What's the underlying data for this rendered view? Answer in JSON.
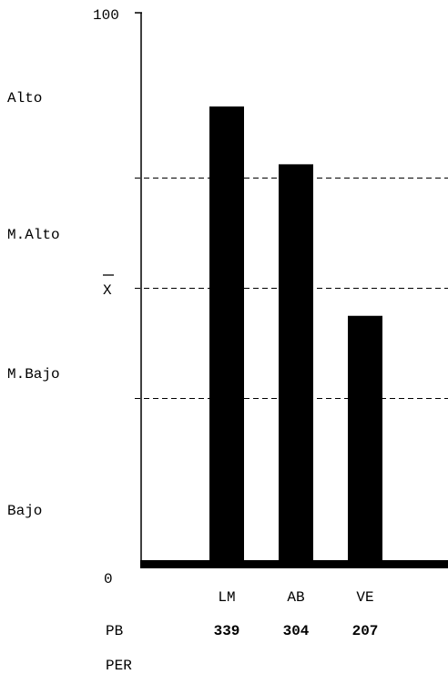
{
  "chart_data": {
    "type": "bar",
    "categories": [
      "LM",
      "AB",
      "VE"
    ],
    "values": [
      83,
      72.5,
      45
    ],
    "ylim": [
      0,
      100
    ],
    "y_tick_labels": [
      "0",
      "100"
    ],
    "mean_label": "X",
    "reference_lines": [
      30,
      50,
      70
    ],
    "bands": [
      {
        "label": "Alto",
        "range": [
          70,
          100
        ]
      },
      {
        "label": "M.Alto",
        "range": [
          50,
          70
        ]
      },
      {
        "label": "M.Bajo",
        "range": [
          30,
          50
        ]
      },
      {
        "label": "Bajo",
        "range": [
          0,
          30
        ]
      }
    ],
    "rows": [
      {
        "label": "PB",
        "values": [
          "339",
          "304",
          "207"
        ]
      },
      {
        "label": "PER",
        "values": []
      }
    ],
    "bar_color": "#000000",
    "grid": false
  }
}
